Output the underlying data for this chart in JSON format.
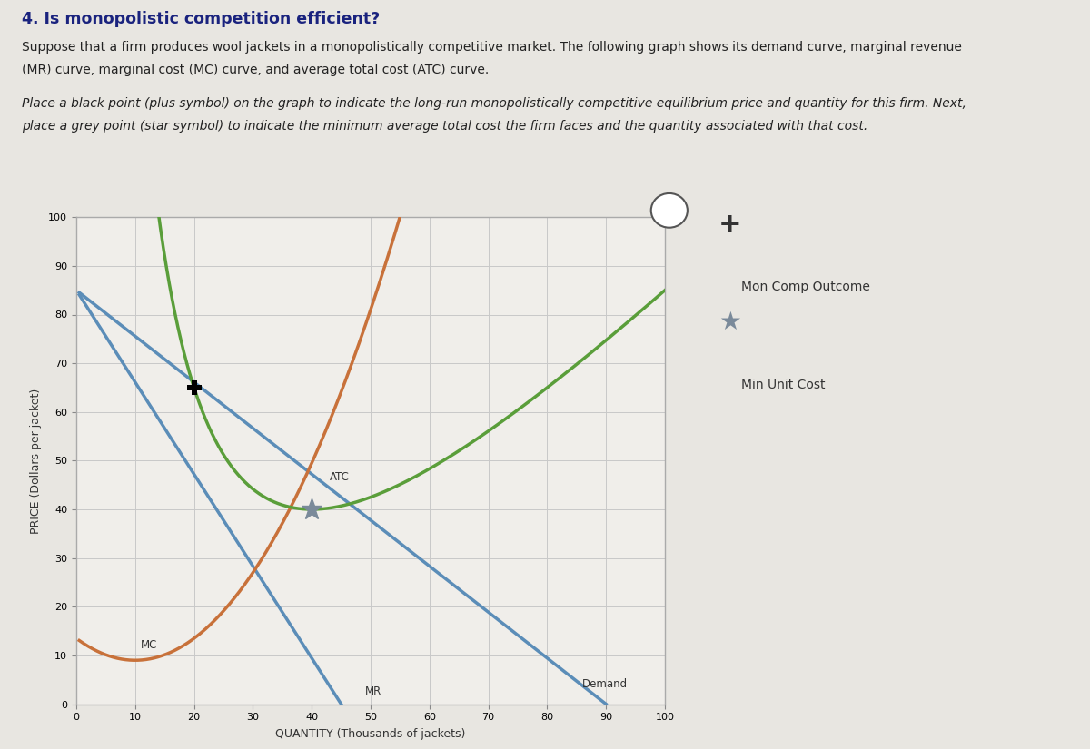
{
  "title_main": "4. Is monopolistic competition efficient?",
  "subtitle1": "Suppose that a firm produces wool jackets in a monopolistically competitive market. The following graph shows its demand curve, marginal revenue",
  "subtitle2": "(MR) curve, marginal cost (MC) curve, and average total cost (ATC) curve.",
  "instruction1": "Place a black point (plus symbol) on the graph to indicate the long-run monopolistically competitive equilibrium price and quantity for this firm. Next,",
  "instruction2": "place a grey point (star symbol) to indicate the minimum average total cost the firm faces and the quantity associated with that cost.",
  "xlabel": "QUANTITY (Thousands of jackets)",
  "ylabel": "PRICE (Dollars per jacket)",
  "xlim": [
    0,
    100
  ],
  "ylim": [
    0,
    100
  ],
  "xticks": [
    0,
    10,
    20,
    30,
    40,
    50,
    60,
    70,
    80,
    90,
    100
  ],
  "yticks": [
    0,
    10,
    20,
    30,
    40,
    50,
    60,
    70,
    80,
    90,
    100
  ],
  "demand_color": "#5b8db8",
  "mr_color": "#5b8db8",
  "mc_color": "#c8713a",
  "atc_color": "#5a9e3a",
  "demand_label": "Demand",
  "mr_label": "MR",
  "mc_label": "MC",
  "atc_label": "ATC",
  "mon_comp_x": 20,
  "mon_comp_y": 65,
  "min_cost_x": 40,
  "min_cost_y": 40,
  "mon_comp_label": "Mon Comp Outcome",
  "min_cost_label": "Min Unit Cost",
  "page_bg": "#e8e6e1",
  "plot_bg": "#f0eeea",
  "grid_color": "#c8c8c8",
  "border_color": "#aaaaaa"
}
